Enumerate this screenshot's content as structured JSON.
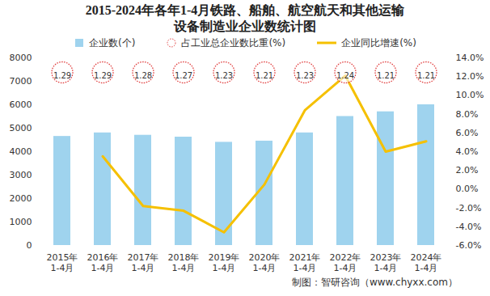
{
  "chart_data": {
    "type": "bar",
    "title": "2015-2024年各年1-4月铁路、船舶、航空航天和其他运输\n设备制造业企业数统计图",
    "caption": "制图：智研咨询（www.chyxx.com）",
    "categories": [
      "2015年\n1-4月",
      "2016年\n1-4月",
      "2017年\n1-4月",
      "2018年\n1-4月",
      "2019年\n1-4月",
      "2020年\n1-4月",
      "2021年\n1-4月",
      "2022年\n1-4月",
      "2023年\n1-4月",
      "2024年\n1-4月"
    ],
    "series": [
      {
        "name": "企业数(个)",
        "type": "bar",
        "color": "#9fd3ee",
        "values": [
          4650,
          4800,
          4700,
          4620,
          4400,
          4450,
          4800,
          5500,
          5700,
          6000
        ]
      },
      {
        "name": "占工业总企业数比重(%)",
        "type": "scatter",
        "marker": "circle",
        "line_style": "dotted",
        "color": "#e03c3c",
        "data_labels": true,
        "values": [
          1.29,
          1.29,
          1.28,
          1.27,
          1.23,
          1.21,
          1.23,
          1.24,
          1.21,
          1.21
        ]
      },
      {
        "name": "企业同比增速(%)",
        "type": "line",
        "axis": "y2",
        "color": "#f5c000",
        "values": [
          null,
          3.5,
          -1.8,
          -2.3,
          -4.6,
          0.5,
          8.4,
          12.1,
          4.0,
          5.1
        ]
      }
    ],
    "ylim": [
      0,
      8000
    ],
    "yticks": [
      0,
      1000,
      2000,
      3000,
      4000,
      5000,
      6000,
      7000,
      8000
    ],
    "y2lim": [
      -6,
      14
    ],
    "y2ticks": [
      {
        "value": -6,
        "label": "-6.0%"
      },
      {
        "value": -4,
        "label": "-4.0%"
      },
      {
        "value": -2,
        "label": "-2.0%"
      },
      {
        "value": 0,
        "label": "0.0%"
      },
      {
        "value": 2,
        "label": "2.0%"
      },
      {
        "value": 4,
        "label": "4.0%"
      },
      {
        "value": 6,
        "label": "6.0%"
      },
      {
        "value": 8,
        "label": "8.0%"
      },
      {
        "value": 10,
        "label": "10.0%"
      },
      {
        "value": 12,
        "label": "12.0%"
      },
      {
        "value": 14,
        "label": "14.0%"
      }
    ],
    "legend": "top",
    "grid": false
  }
}
